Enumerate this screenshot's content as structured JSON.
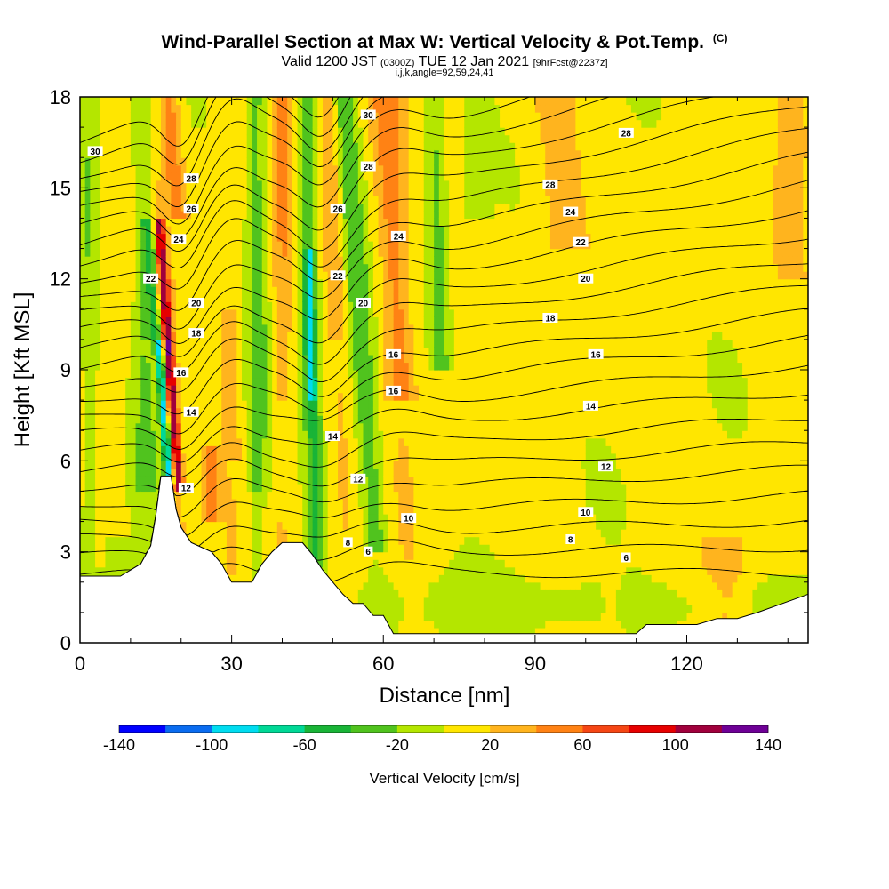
{
  "chart_data": {
    "type": "heatmap",
    "title": "Wind-Parallel Section at Max W: Vertical Velocity & Pot.Temp.",
    "title_mark": "(C)",
    "subtitle_valid": "Valid 1200 JST",
    "subtitle_utc": "(0300Z)",
    "subtitle_date": "TUE 12 Jan 2021",
    "subtitle_fcst": "[9hrFcst@2237z]",
    "subtitle_index": "i,j,k,angle=92,59,24,41",
    "xlabel": "Distance [nm]",
    "ylabel": "Height [Kft MSL]",
    "xlim": [
      0,
      144
    ],
    "ylim": [
      0,
      18
    ],
    "x_ticks": [
      "0",
      "30",
      "60",
      "90",
      "120"
    ],
    "y_ticks": [
      "0",
      "3",
      "6",
      "9",
      "12",
      "15",
      "18"
    ],
    "colorbar": {
      "title": "Vertical Velocity [cm/s]",
      "min": -140,
      "max": 140,
      "step": 20,
      "tick_labels": [
        "-140",
        "-100",
        "-60",
        "-20",
        "20",
        "60",
        "100",
        "140"
      ],
      "colors": [
        "#0000ff",
        "#0a6cf0",
        "#00dcf0",
        "#00d896",
        "#19b437",
        "#50c31e",
        "#b4e600",
        "#ffe600",
        "#ffb41e",
        "#ff8214",
        "#f54614",
        "#e60000",
        "#a0003c",
        "#6e0096"
      ]
    },
    "terrain": [
      [
        0,
        2.2
      ],
      [
        8,
        2.2
      ],
      [
        12,
        2.6
      ],
      [
        14,
        3.2
      ],
      [
        15,
        4.2
      ],
      [
        16,
        5.5
      ],
      [
        18,
        5.5
      ],
      [
        19,
        4.4
      ],
      [
        20,
        3.8
      ],
      [
        22,
        3.3
      ],
      [
        26,
        3.0
      ],
      [
        28,
        2.6
      ],
      [
        30,
        2.0
      ],
      [
        34,
        2.0
      ],
      [
        36,
        2.6
      ],
      [
        38,
        3.0
      ],
      [
        40,
        3.3
      ],
      [
        44,
        3.3
      ],
      [
        46,
        2.9
      ],
      [
        48,
        2.4
      ],
      [
        50,
        2.0
      ],
      [
        52,
        1.6
      ],
      [
        54,
        1.3
      ],
      [
        56,
        1.3
      ],
      [
        58,
        0.9
      ],
      [
        60,
        0.9
      ],
      [
        62,
        0.3
      ],
      [
        70,
        0.3
      ],
      [
        110,
        0.3
      ],
      [
        112,
        0.6
      ],
      [
        122,
        0.6
      ],
      [
        126,
        0.8
      ],
      [
        130,
        0.8
      ],
      [
        134,
        1.0
      ],
      [
        144,
        1.6
      ]
    ],
    "pot_temp_contours": {
      "unit": "C",
      "levels": [
        6,
        8,
        10,
        12,
        14,
        16,
        18,
        20,
        22,
        24,
        26,
        28,
        30
      ],
      "labels": [
        {
          "text": "30",
          "x": 3,
          "y": 16.2
        },
        {
          "text": "30",
          "x": 57,
          "y": 17.4
        },
        {
          "text": "28",
          "x": 108,
          "y": 16.8
        },
        {
          "text": "28",
          "x": 22,
          "y": 15.3
        },
        {
          "text": "28",
          "x": 57,
          "y": 15.7
        },
        {
          "text": "28",
          "x": 93,
          "y": 15.1
        },
        {
          "text": "26",
          "x": 22,
          "y": 14.3
        },
        {
          "text": "26",
          "x": 51,
          "y": 14.3
        },
        {
          "text": "24",
          "x": 19.5,
          "y": 13.3
        },
        {
          "text": "24",
          "x": 63,
          "y": 13.4
        },
        {
          "text": "24",
          "x": 97,
          "y": 14.2
        },
        {
          "text": "22",
          "x": 14,
          "y": 12.0
        },
        {
          "text": "22",
          "x": 51,
          "y": 12.1
        },
        {
          "text": "22",
          "x": 99,
          "y": 13.2
        },
        {
          "text": "20",
          "x": 23,
          "y": 11.2
        },
        {
          "text": "20",
          "x": 56,
          "y": 11.2
        },
        {
          "text": "20",
          "x": 100,
          "y": 12.0
        },
        {
          "text": "18",
          "x": 23,
          "y": 10.2
        },
        {
          "text": "18",
          "x": 93,
          "y": 10.7
        },
        {
          "text": "16",
          "x": 20,
          "y": 8.9
        },
        {
          "text": "16",
          "x": 62,
          "y": 9.5
        },
        {
          "text": "16",
          "x": 102,
          "y": 9.5
        },
        {
          "text": "16",
          "x": 62,
          "y": 8.3
        },
        {
          "text": "14",
          "x": 22,
          "y": 7.6
        },
        {
          "text": "14",
          "x": 50,
          "y": 6.8
        },
        {
          "text": "14",
          "x": 101,
          "y": 7.8
        },
        {
          "text": "12",
          "x": 21,
          "y": 5.1
        },
        {
          "text": "12",
          "x": 55,
          "y": 5.4
        },
        {
          "text": "12",
          "x": 104,
          "y": 5.8
        },
        {
          "text": "10",
          "x": 65,
          "y": 4.1
        },
        {
          "text": "10",
          "x": 100,
          "y": 4.3
        },
        {
          "text": "8",
          "x": 53,
          "y": 3.3
        },
        {
          "text": "8",
          "x": 97,
          "y": 3.4
        },
        {
          "text": "6",
          "x": 57,
          "y": 3.0
        },
        {
          "text": "6",
          "x": 108,
          "y": 2.8
        }
      ]
    },
    "grid": false
  }
}
